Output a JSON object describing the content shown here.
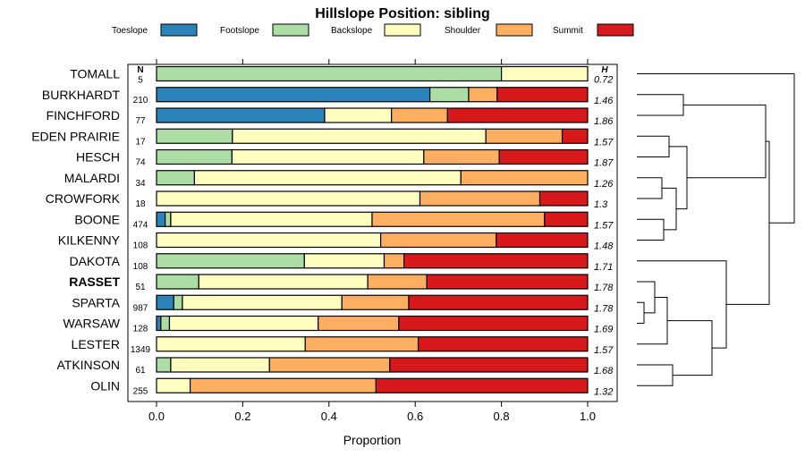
{
  "chart_data": {
    "type": "bar",
    "stacked": true,
    "orientation": "horizontal",
    "title": "Hillslope Position: sibling",
    "xlabel": "Proportion",
    "xlim": [
      0,
      1
    ],
    "x_ticks": [
      "0.0",
      "0.2",
      "0.4",
      "0.6",
      "0.8",
      "1.0"
    ],
    "legend_placement": "top",
    "n_header": "N",
    "h_header": "H",
    "highlighted_category": "RASSET",
    "series": [
      {
        "name": "Toeslope",
        "color": "#2b83ba"
      },
      {
        "name": "Footslope",
        "color": "#abdda4"
      },
      {
        "name": "Backslope",
        "color": "#ffffbf"
      },
      {
        "name": "Shoulder",
        "color": "#fdae61"
      },
      {
        "name": "Summit",
        "color": "#d7191c"
      }
    ],
    "rows": [
      {
        "name": "TOMALL",
        "n": "5",
        "h": "0.72",
        "values": [
          0,
          0.8,
          0.2,
          0,
          0
        ]
      },
      {
        "name": "BURKHARDT",
        "n": "210",
        "h": "1.46",
        "values": [
          0.634,
          0.09,
          0,
          0.066,
          0.21
        ]
      },
      {
        "name": "FINCHFORD",
        "n": "77",
        "h": "1.86",
        "values": [
          0.39,
          0,
          0.155,
          0.13,
          0.325
        ]
      },
      {
        "name": "EDEN PRAIRIE",
        "n": "17",
        "h": "1.57",
        "values": [
          0,
          0.176,
          0.588,
          0.177,
          0.059
        ]
      },
      {
        "name": "HESCH",
        "n": "74",
        "h": "1.87",
        "values": [
          0,
          0.175,
          0.445,
          0.175,
          0.205
        ]
      },
      {
        "name": "MALARDI",
        "n": "34",
        "h": "1.26",
        "values": [
          0,
          0.088,
          0.618,
          0.294,
          0
        ]
      },
      {
        "name": "CROWFORK",
        "n": "18",
        "h": "1.3",
        "values": [
          0,
          0,
          0.611,
          0.278,
          0.111
        ]
      },
      {
        "name": "BOONE",
        "n": "474",
        "h": "1.57",
        "values": [
          0.02,
          0.013,
          0.467,
          0.4,
          0.1
        ]
      },
      {
        "name": "KILKENNY",
        "n": "108",
        "h": "1.48",
        "values": [
          0,
          0,
          0.52,
          0.268,
          0.212
        ]
      },
      {
        "name": "DAKOTA",
        "n": "108",
        "h": "1.71",
        "values": [
          0,
          0.343,
          0.185,
          0.046,
          0.426
        ]
      },
      {
        "name": "RASSET",
        "n": "51",
        "h": "1.78",
        "values": [
          0,
          0.098,
          0.392,
          0.137,
          0.373
        ]
      },
      {
        "name": "SPARTA",
        "n": "987",
        "h": "1.78",
        "values": [
          0.04,
          0.02,
          0.37,
          0.155,
          0.415
        ]
      },
      {
        "name": "WARSAW",
        "n": "128",
        "h": "1.69",
        "values": [
          0.01,
          0.02,
          0.345,
          0.187,
          0.438
        ]
      },
      {
        "name": "LESTER",
        "n": "1349",
        "h": "1.57",
        "values": [
          0,
          0,
          0.345,
          0.262,
          0.393
        ]
      },
      {
        "name": "ATKINSON",
        "n": "61",
        "h": "1.68",
        "values": [
          0,
          0.033,
          0.229,
          0.279,
          0.459
        ]
      },
      {
        "name": "OLIN",
        "n": "255",
        "h": "1.32",
        "values": [
          0,
          0,
          0.078,
          0.431,
          0.491
        ]
      }
    ],
    "dendrogram": {
      "leaves": [
        "TOMALL",
        "BURKHARDT",
        "FINCHFORD",
        "EDEN PRAIRIE",
        "HESCH",
        "MALARDI",
        "CROWFORK",
        "BOONE",
        "KILKENNY",
        "DAKOTA",
        "RASSET",
        "SPARTA",
        "WARSAW",
        "LESTER",
        "ATKINSON",
        "OLIN"
      ],
      "merges": [
        {
          "a": [
            "leaf",
            11
          ],
          "b": [
            "leaf",
            12
          ],
          "height": 0.02
        },
        {
          "a": [
            "leaf",
            10
          ],
          "b": [
            "node",
            0
          ],
          "height": 0.05
        },
        {
          "a": [
            "leaf",
            5
          ],
          "b": [
            "leaf",
            6
          ],
          "height": 0.07
        },
        {
          "a": [
            "leaf",
            7
          ],
          "b": [
            "leaf",
            8
          ],
          "height": 0.075
        },
        {
          "a": [
            "leaf",
            13
          ],
          "b": [
            "node",
            1
          ],
          "height": 0.085
        },
        {
          "a": [
            "leaf",
            3
          ],
          "b": [
            "leaf",
            4
          ],
          "height": 0.09
        },
        {
          "a": [
            "leaf",
            14
          ],
          "b": [
            "leaf",
            15
          ],
          "height": 0.1
        },
        {
          "a": [
            "node",
            2
          ],
          "b": [
            "node",
            3
          ],
          "height": 0.11
        },
        {
          "a": [
            "node",
            4
          ],
          "b": [
            "node",
            6
          ],
          "height": 0.21
        },
        {
          "a": [
            "leaf",
            1
          ],
          "b": [
            "leaf",
            2
          ],
          "height": 0.13
        },
        {
          "a": [
            "node",
            5
          ],
          "b": [
            "node",
            7
          ],
          "height": 0.14
        },
        {
          "a": [
            "leaf",
            9
          ],
          "b": [
            "node",
            8
          ],
          "height": 0.25
        },
        {
          "a": [
            "node",
            9
          ],
          "b": [
            "node",
            10
          ],
          "height": 0.36
        },
        {
          "a": [
            "node",
            12
          ],
          "b": [
            "node",
            11
          ],
          "height": 0.37
        },
        {
          "a": [
            "leaf",
            0
          ],
          "b": [
            "node",
            13
          ],
          "height": 0.44
        }
      ]
    }
  }
}
